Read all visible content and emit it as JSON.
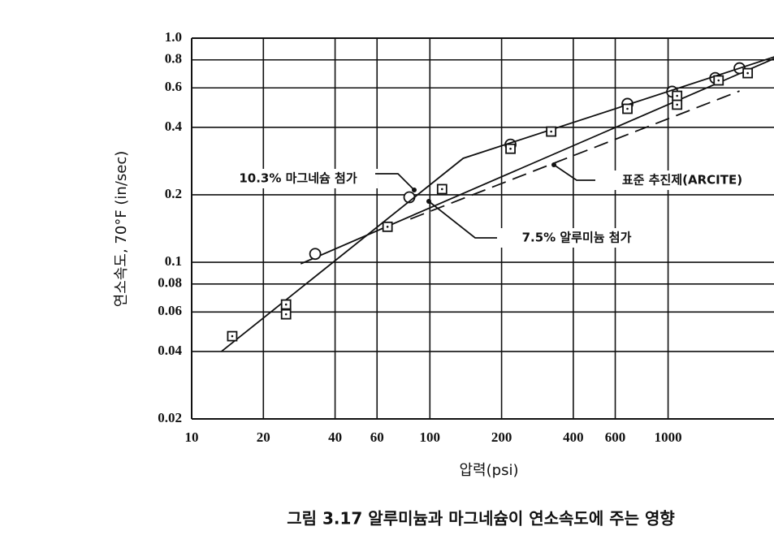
{
  "chart_data": {
    "type": "scatter",
    "x_label": "압력(psi)",
    "y_label": "연소속도, 70°F (in/sec)",
    "caption": "그림 3.17  알루미늄과 마그네슘이 연소속도에 주는 영향",
    "xlog": true,
    "ylog": true,
    "grid": true,
    "xlim": [
      10,
      2800
    ],
    "ylim": [
      0.02,
      1
    ],
    "xticks": [
      10,
      20,
      40,
      60,
      100,
      200,
      400,
      600,
      1000
    ],
    "yticks": [
      {
        "value": 1,
        "label": "1.0"
      },
      0.8,
      0.6,
      0.4,
      0.2,
      0.1,
      0.08,
      0.06,
      0.04,
      0.02
    ],
    "series": [
      {
        "name": "10.3% 마그네슘 첨가",
        "marker": "circle",
        "color": "#111",
        "x": [
          33,
          82,
          218,
          675,
          1040,
          1578,
          1995
        ],
        "values": [
          0.109,
          0.195,
          0.335,
          0.509,
          0.577,
          0.664,
          0.734
        ],
        "line_style": "solid",
        "line_x": [
          28.7,
          2800
        ],
        "line_values": [
          0.0984,
          0.812
        ]
      },
      {
        "name": "7.5% 알루미늄 첨가",
        "marker": "square",
        "color": "#111",
        "x": [
          14.8,
          24.9,
          24.9,
          66.4,
          112.5,
          218,
          323,
          675,
          1091,
          1091,
          1629,
          2159
        ],
        "values": [
          0.0468,
          0.0648,
          0.0586,
          0.144,
          0.212,
          0.321,
          0.383,
          0.484,
          0.505,
          0.553,
          0.648,
          0.698
        ],
        "line_style": "solid",
        "line_x": [
          13.3,
          138,
          2800
        ],
        "line_values": [
          0.0399,
          0.291,
          0.826
        ]
      },
      {
        "name": "표준 추진제(ARCITE)",
        "marker": "none",
        "color": "#111",
        "x": [],
        "values": [],
        "line_style": "dashed",
        "line_x": [
          82.8,
          1995
        ],
        "line_values": [
          0.156,
          0.581
        ]
      }
    ]
  }
}
